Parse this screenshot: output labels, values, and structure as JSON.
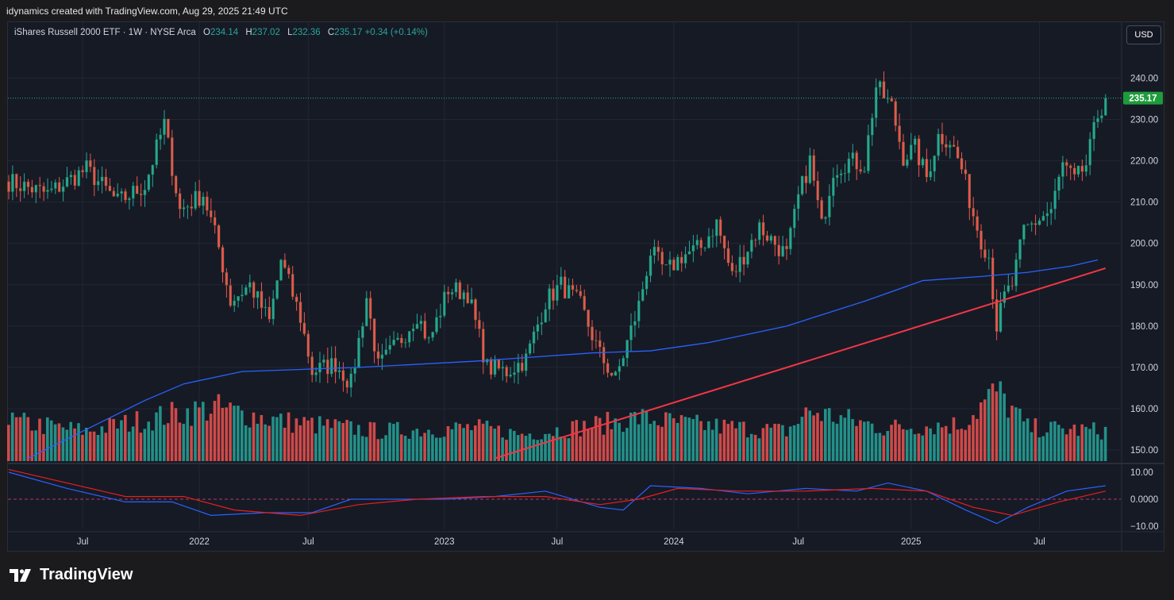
{
  "header": {
    "caption": "idynamics created with TradingView.com, Aug 29, 2025 21:49 UTC"
  },
  "legend": {
    "symbol": "iShares Russell 2000 ETF · 1W · NYSE Arca",
    "o_label": "O",
    "o": "234.14",
    "h_label": "H",
    "h": "237.02",
    "l_label": "L",
    "l": "232.36",
    "c_label": "C",
    "c": "235.17",
    "change": "+0.34 (+0.14%)"
  },
  "currency_button": "USD",
  "last_price_label": "235.17",
  "footer": {
    "brand": "TradingView"
  },
  "colors": {
    "up": "#26a69a",
    "down": "#ef5350",
    "up_volume": "#26a69a",
    "down_volume": "#ef5350",
    "moving_average": "#2962ff",
    "trendline": "#f23645",
    "osc_blue": "#2962ff",
    "osc_red": "#e91e1e",
    "last_price": "#26a69a",
    "last_price_badge": "#1e9c3c"
  },
  "chart_data": [
    {
      "type": "candlestick",
      "x_tick_labels": [
        "Jul",
        "2022",
        "Jul",
        "2023",
        "Jul",
        "2024",
        "Jul",
        "2025",
        "Jul"
      ],
      "y_ticks": [
        "240.00",
        "230.00",
        "220.00",
        "210.00",
        "200.00",
        "190.00",
        "180.00",
        "170.00",
        "160.00",
        "150.00"
      ],
      "ylim": [
        147,
        250
      ],
      "last_price": 235.17,
      "close_anchors": [
        {
          "week": 0,
          "close": 215
        },
        {
          "week": 10,
          "close": 212
        },
        {
          "week": 20,
          "close": 218
        },
        {
          "week": 28,
          "close": 210
        },
        {
          "week": 35,
          "close": 214
        },
        {
          "week": 40,
          "close": 229
        },
        {
          "week": 44,
          "close": 208
        },
        {
          "week": 50,
          "close": 212
        },
        {
          "week": 54,
          "close": 199
        },
        {
          "week": 57,
          "close": 186
        },
        {
          "week": 62,
          "close": 190
        },
        {
          "week": 67,
          "close": 181
        },
        {
          "week": 70,
          "close": 196
        },
        {
          "week": 75,
          "close": 182
        },
        {
          "week": 78,
          "close": 169
        },
        {
          "week": 84,
          "close": 171
        },
        {
          "week": 88,
          "close": 166
        },
        {
          "week": 92,
          "close": 187
        },
        {
          "week": 95,
          "close": 170
        },
        {
          "week": 101,
          "close": 177
        },
        {
          "week": 105,
          "close": 183
        },
        {
          "week": 108,
          "close": 176
        },
        {
          "week": 113,
          "close": 189
        },
        {
          "week": 118,
          "close": 188
        },
        {
          "week": 123,
          "close": 170
        },
        {
          "week": 128,
          "close": 169
        },
        {
          "week": 133,
          "close": 172
        },
        {
          "week": 138,
          "close": 186
        },
        {
          "week": 142,
          "close": 190
        },
        {
          "week": 147,
          "close": 185
        },
        {
          "week": 152,
          "close": 173
        },
        {
          "week": 156,
          "close": 167
        },
        {
          "week": 158,
          "close": 173
        },
        {
          "week": 162,
          "close": 185
        },
        {
          "week": 165,
          "close": 198
        },
        {
          "week": 169,
          "close": 193
        },
        {
          "week": 173,
          "close": 197
        },
        {
          "week": 178,
          "close": 199
        },
        {
          "week": 182,
          "close": 205
        },
        {
          "week": 186,
          "close": 192
        },
        {
          "week": 190,
          "close": 199
        },
        {
          "week": 193,
          "close": 204
        },
        {
          "week": 197,
          "close": 200
        },
        {
          "week": 200,
          "close": 197
        },
        {
          "week": 203,
          "close": 211
        },
        {
          "week": 206,
          "close": 220
        },
        {
          "week": 209,
          "close": 204
        },
        {
          "week": 212,
          "close": 218
        },
        {
          "week": 216,
          "close": 220
        },
        {
          "week": 220,
          "close": 219
        },
        {
          "week": 223,
          "close": 238
        },
        {
          "week": 227,
          "close": 233
        },
        {
          "week": 230,
          "close": 221
        },
        {
          "week": 233,
          "close": 223
        },
        {
          "week": 236,
          "close": 216
        },
        {
          "week": 239,
          "close": 226
        },
        {
          "week": 242,
          "close": 225
        },
        {
          "week": 245,
          "close": 218
        },
        {
          "week": 248,
          "close": 207
        },
        {
          "week": 250,
          "close": 201
        },
        {
          "week": 252,
          "close": 197
        },
        {
          "week": 254,
          "close": 180
        },
        {
          "week": 256,
          "close": 187
        },
        {
          "week": 258,
          "close": 190
        },
        {
          "week": 261,
          "close": 203
        },
        {
          "week": 265,
          "close": 206
        },
        {
          "week": 268,
          "close": 208
        },
        {
          "week": 271,
          "close": 219
        },
        {
          "week": 274,
          "close": 215
        },
        {
          "week": 277,
          "close": 219
        },
        {
          "week": 280,
          "close": 231
        },
        {
          "week": 282,
          "close": 235.17
        }
      ],
      "moving_average": [
        {
          "week": 5,
          "value": 148
        },
        {
          "week": 20,
          "value": 155
        },
        {
          "week": 35,
          "value": 162
        },
        {
          "week": 45,
          "value": 166
        },
        {
          "week": 60,
          "value": 169
        },
        {
          "week": 90,
          "value": 170
        },
        {
          "week": 120,
          "value": 171.5
        },
        {
          "week": 150,
          "value": 173.5
        },
        {
          "week": 165,
          "value": 174
        },
        {
          "week": 180,
          "value": 176
        },
        {
          "week": 200,
          "value": 180
        },
        {
          "week": 220,
          "value": 186
        },
        {
          "week": 235,
          "value": 191
        },
        {
          "week": 250,
          "value": 192
        },
        {
          "week": 262,
          "value": 193
        },
        {
          "week": 273,
          "value": 194.5
        },
        {
          "week": 280,
          "value": 196
        }
      ],
      "trendline": {
        "start": {
          "week": 125,
          "value": 148
        },
        "end": {
          "week": 282,
          "value": 194
        }
      }
    },
    {
      "type": "bar",
      "name": "Volume",
      "volume_anchors": [
        {
          "week": 0,
          "value": 12
        },
        {
          "week": 20,
          "value": 9
        },
        {
          "week": 42,
          "value": 14
        },
        {
          "week": 53,
          "value": 16
        },
        {
          "week": 70,
          "value": 12
        },
        {
          "week": 78,
          "value": 11
        },
        {
          "week": 95,
          "value": 9
        },
        {
          "week": 120,
          "value": 10
        },
        {
          "week": 132,
          "value": 8
        },
        {
          "week": 152,
          "value": 11
        },
        {
          "week": 162,
          "value": 13
        },
        {
          "week": 175,
          "value": 11
        },
        {
          "week": 200,
          "value": 9
        },
        {
          "week": 206,
          "value": 15
        },
        {
          "week": 225,
          "value": 10
        },
        {
          "week": 245,
          "value": 11
        },
        {
          "week": 254,
          "value": 21
        },
        {
          "week": 262,
          "value": 10
        },
        {
          "week": 282,
          "value": 9
        }
      ]
    },
    {
      "type": "line",
      "name": "Oscillator",
      "y_ticks": [
        "10.00",
        "0.0000",
        "−10.00"
      ],
      "ylim": [
        -14,
        14
      ],
      "series": [
        {
          "name": "",
          "color": "#2962ff",
          "values": [
            {
              "week": 0,
              "value": 10
            },
            {
              "week": 15,
              "value": 4
            },
            {
              "week": 30,
              "value": -1
            },
            {
              "week": 42,
              "value": -1
            },
            {
              "week": 52,
              "value": -6
            },
            {
              "week": 66,
              "value": -5
            },
            {
              "week": 78,
              "value": -5
            },
            {
              "week": 88,
              "value": 0
            },
            {
              "week": 98,
              "value": 0
            },
            {
              "week": 112,
              "value": 0
            },
            {
              "week": 125,
              "value": 1
            },
            {
              "week": 138,
              "value": 3
            },
            {
              "week": 152,
              "value": -3
            },
            {
              "week": 158,
              "value": -4
            },
            {
              "week": 165,
              "value": 5
            },
            {
              "week": 178,
              "value": 4
            },
            {
              "week": 190,
              "value": 2
            },
            {
              "week": 205,
              "value": 4
            },
            {
              "week": 218,
              "value": 3
            },
            {
              "week": 226,
              "value": 6
            },
            {
              "week": 236,
              "value": 3
            },
            {
              "week": 246,
              "value": -4
            },
            {
              "week": 254,
              "value": -9
            },
            {
              "week": 262,
              "value": -3
            },
            {
              "week": 272,
              "value": 3
            },
            {
              "week": 282,
              "value": 5
            }
          ]
        },
        {
          "name": "",
          "color": "#e91e1e",
          "values": [
            {
              "week": 0,
              "value": 11
            },
            {
              "week": 15,
              "value": 6
            },
            {
              "week": 30,
              "value": 1
            },
            {
              "week": 45,
              "value": 1
            },
            {
              "week": 58,
              "value": -4
            },
            {
              "week": 75,
              "value": -6
            },
            {
              "week": 90,
              "value": -2
            },
            {
              "week": 105,
              "value": 0
            },
            {
              "week": 122,
              "value": 1
            },
            {
              "week": 138,
              "value": 1
            },
            {
              "week": 152,
              "value": -2
            },
            {
              "week": 162,
              "value": 0
            },
            {
              "week": 172,
              "value": 4
            },
            {
              "week": 188,
              "value": 3
            },
            {
              "week": 205,
              "value": 3
            },
            {
              "week": 222,
              "value": 4
            },
            {
              "week": 236,
              "value": 3
            },
            {
              "week": 248,
              "value": -3
            },
            {
              "week": 258,
              "value": -6
            },
            {
              "week": 270,
              "value": -1
            },
            {
              "week": 282,
              "value": 3
            }
          ]
        }
      ]
    }
  ]
}
